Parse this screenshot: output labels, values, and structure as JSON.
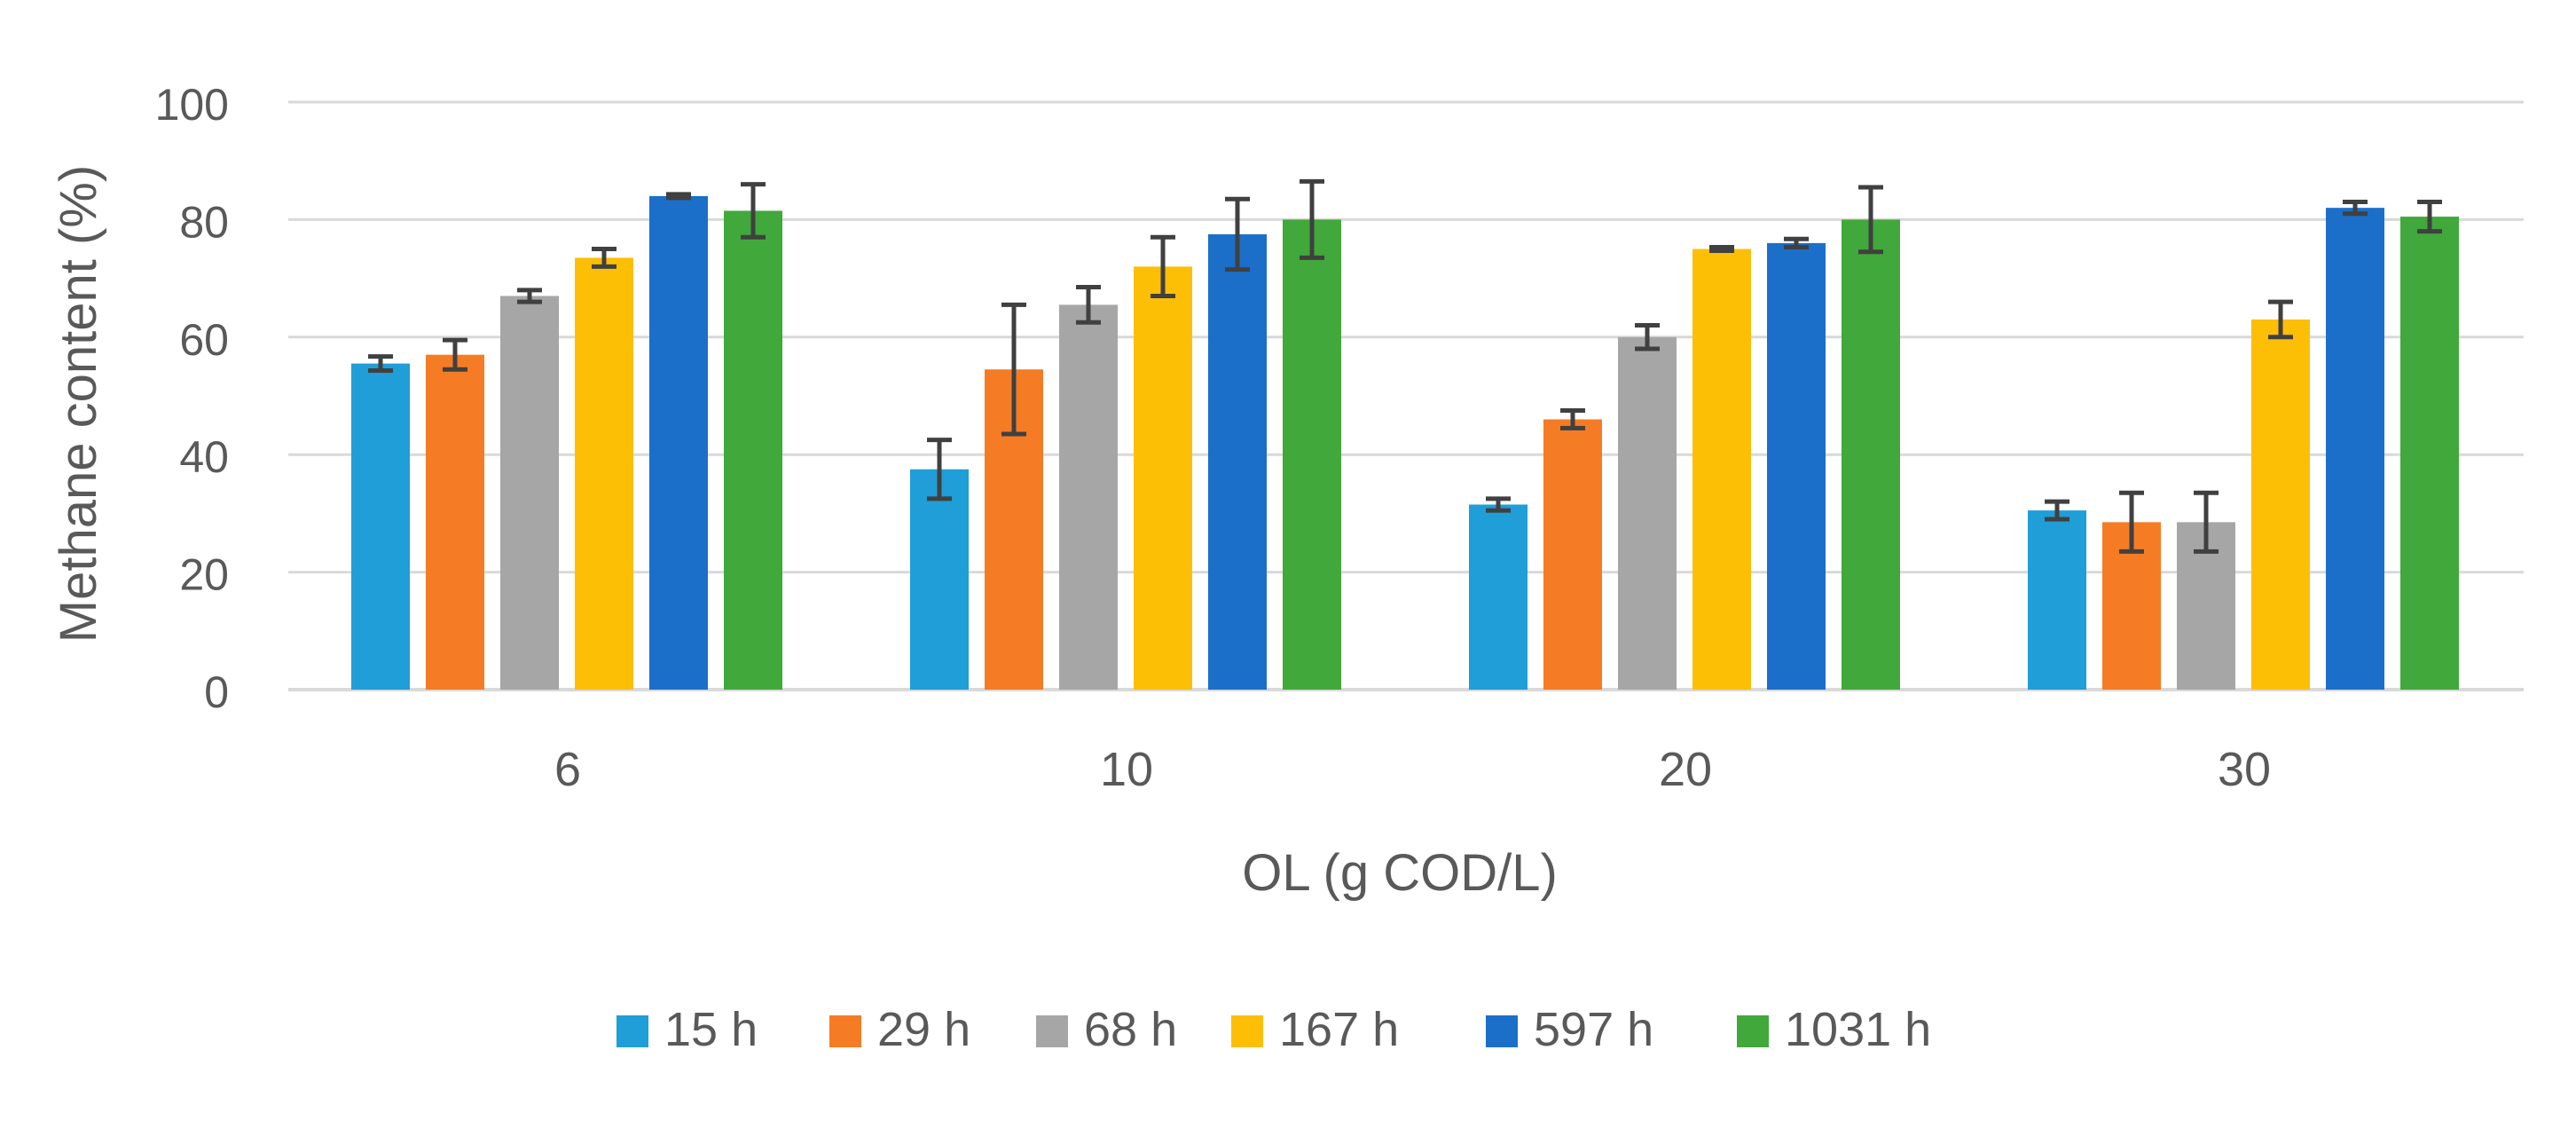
{
  "chart_data": {
    "type": "bar",
    "title": "",
    "xlabel": "OL (g COD/L)",
    "ylabel": "Methane content (%)",
    "ylim": [
      0,
      100
    ],
    "yticks": [
      0,
      20,
      40,
      60,
      80,
      100
    ],
    "grid": true,
    "legend_position": "bottom",
    "categories": [
      "6",
      "10",
      "20",
      "30"
    ],
    "series": [
      {
        "name": "15 h",
        "color": "#1f9ed8",
        "values": [
          55.5,
          37.5,
          31.5,
          30.5
        ],
        "errors": [
          1.2,
          5.0,
          1.0,
          1.5
        ]
      },
      {
        "name": "29 h",
        "color": "#f57c24",
        "values": [
          57.0,
          54.5,
          46.0,
          28.5
        ],
        "errors": [
          2.5,
          11.0,
          1.5,
          5.0
        ]
      },
      {
        "name": "68 h",
        "color": "#a6a6a6",
        "values": [
          67.0,
          65.5,
          60.0,
          28.5
        ],
        "errors": [
          1.0,
          3.0,
          2.0,
          5.0
        ]
      },
      {
        "name": "167 h",
        "color": "#fdbf06",
        "values": [
          73.5,
          72.0,
          75.0,
          63.0
        ],
        "errors": [
          1.5,
          5.0,
          0.3,
          3.0
        ]
      },
      {
        "name": "597 h",
        "color": "#1b6fc9",
        "values": [
          84.0,
          77.5,
          76.0,
          82.0
        ],
        "errors": [
          0.3,
          6.0,
          0.7,
          1.0
        ]
      },
      {
        "name": "1031 h",
        "color": "#41a83b",
        "values": [
          81.5,
          80.0,
          80.0,
          80.5
        ],
        "errors": [
          4.5,
          6.5,
          5.5,
          2.5
        ]
      }
    ],
    "axis_color": "#d9d9d9",
    "error_bar_color": "#404040"
  }
}
